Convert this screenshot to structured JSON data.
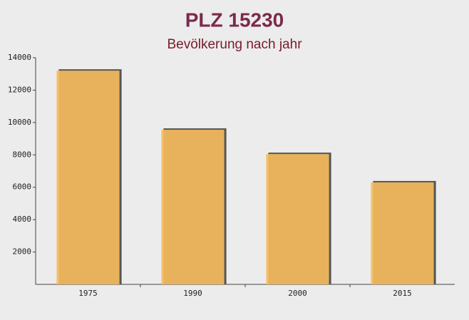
{
  "chart_data": {
    "type": "bar",
    "title": "PLZ 15230",
    "subtitle": "Bevölkerung nach jahr",
    "categories": [
      "1975",
      "1990",
      "2000",
      "2015"
    ],
    "values": [
      13200,
      9550,
      8050,
      6300
    ],
    "color": "#f7bd5c",
    "ylim": [
      0,
      14000
    ],
    "yticks": [
      2000,
      4000,
      6000,
      8000,
      10000,
      12000,
      14000
    ],
    "grid": false
  }
}
